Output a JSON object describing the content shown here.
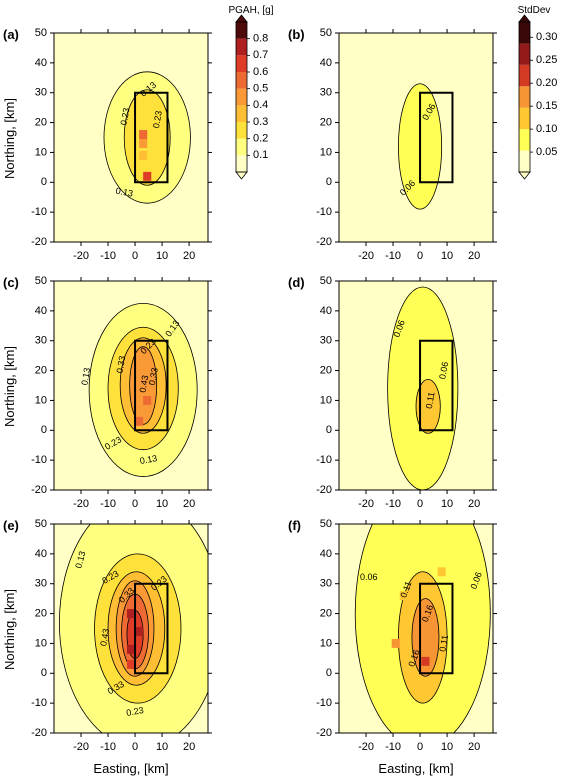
{
  "figure": {
    "axis_labels": {
      "x": "Easting, [km]",
      "y": "Northing, [km]"
    },
    "colorbars": [
      {
        "title": "PGAH, [g]",
        "ticks": [
          "0.1",
          "0.2",
          "0.3",
          "0.4",
          "0.5",
          "0.6",
          "0.7",
          "0.8"
        ],
        "levels": [
          0.05,
          0.13,
          0.23,
          0.33,
          0.43,
          0.53,
          0.63,
          0.73,
          0.85
        ],
        "colors": [
          "#FFFFC6",
          "#FFFF80",
          "#FFE13C",
          "#FFBE33",
          "#F99A37",
          "#EE6A33",
          "#DE3C26",
          "#AF1F1F",
          "#4D0A0A"
        ]
      },
      {
        "title": "StdDev",
        "ticks": [
          "0.05",
          "0.10",
          "0.15",
          "0.20",
          "0.25",
          "0.30"
        ],
        "levels": [
          0.03,
          0.06,
          0.11,
          0.16,
          0.21,
          0.26,
          0.31
        ],
        "colors": [
          "#FFFFC6",
          "#FFFF55",
          "#FFC832",
          "#F79535",
          "#D53A24",
          "#921A1A",
          "#3A0808"
        ]
      }
    ]
  },
  "chart_data": [
    {
      "panel": "(a)",
      "type": "heatmap",
      "quantity": "PGAH",
      "colorbar": 0,
      "xlim": [
        -30,
        27
      ],
      "ylim": [
        -20,
        50
      ],
      "xticks": [
        "-20",
        "-10",
        "0",
        "10",
        "20"
      ],
      "yticks": [
        "-20",
        "-10",
        "0",
        "10",
        "20",
        "30",
        "40",
        "50"
      ],
      "show_x_label": false,
      "show_y_label": true,
      "show_x_ticks": true,
      "rupture": [
        [
          0,
          0
        ],
        [
          12,
          0
        ],
        [
          12,
          30
        ],
        [
          0,
          30
        ]
      ],
      "background": 0.04,
      "contours": [
        {
          "level": 0.13,
          "cx": 4.5,
          "cy": 15,
          "rx": 16,
          "ry": 22
        },
        {
          "level": 0.23,
          "cx": 4.5,
          "cy": 15,
          "rx": 8.5,
          "ry": 16
        }
      ],
      "cells": [
        [
          3,
          13,
          0.45
        ],
        [
          3,
          16,
          0.55
        ],
        [
          3,
          9,
          0.35
        ],
        [
          4.5,
          2,
          0.65
        ]
      ],
      "contour_labels": [
        {
          "text": "0.13",
          "x": 5,
          "y": 31,
          "rot": -40
        },
        {
          "text": "0.23",
          "x": -3.5,
          "y": 22,
          "rot": -80
        },
        {
          "text": "0.23",
          "x": 8.5,
          "y": 21,
          "rot": -80
        },
        {
          "text": "0.13",
          "x": -4,
          "y": -3.5,
          "rot": 10
        }
      ]
    },
    {
      "panel": "(b)",
      "type": "heatmap",
      "quantity": "StdDev",
      "colorbar": 1,
      "xlim": [
        -30,
        27
      ],
      "ylim": [
        -20,
        50
      ],
      "xticks": [
        "-20",
        "-10",
        "0",
        "10",
        "20"
      ],
      "yticks": [
        "-20",
        "-10",
        "0",
        "10",
        "20",
        "30",
        "40",
        "50"
      ],
      "show_x_label": false,
      "show_y_label": false,
      "show_x_ticks": true,
      "rupture": [
        [
          0,
          0
        ],
        [
          12,
          0
        ],
        [
          12,
          30
        ],
        [
          0,
          30
        ]
      ],
      "background": 0.04,
      "contours": [
        {
          "level": 0.06,
          "cx": 0,
          "cy": 12,
          "rx": 8,
          "ry": 21
        }
      ],
      "cells": [],
      "contour_labels": [
        {
          "text": "0.06",
          "x": 3.5,
          "y": 23.5,
          "rot": -60
        },
        {
          "text": "0.06",
          "x": -4.5,
          "y": -2,
          "rot": -45
        }
      ]
    },
    {
      "panel": "(c)",
      "type": "heatmap",
      "quantity": "PGAH",
      "colorbar": 0,
      "xlim": [
        -30,
        27
      ],
      "ylim": [
        -20,
        50
      ],
      "xticks": [
        "-20",
        "-10",
        "0",
        "10",
        "20"
      ],
      "yticks": [
        "-20",
        "-10",
        "0",
        "10",
        "20",
        "30",
        "40",
        "50"
      ],
      "show_x_label": false,
      "show_y_label": true,
      "show_x_ticks": true,
      "rupture": [
        [
          0,
          0
        ],
        [
          12,
          0
        ],
        [
          12,
          30
        ],
        [
          0,
          30
        ]
      ],
      "background": 0.04,
      "contours": [
        {
          "level": 0.13,
          "cx": 3,
          "cy": 13.5,
          "rx": 20,
          "ry": 29
        },
        {
          "level": 0.23,
          "cx": 3,
          "cy": 14,
          "rx": 13,
          "ry": 20.5
        },
        {
          "level": 0.33,
          "cx": 3,
          "cy": 15,
          "rx": 8.5,
          "ry": 16
        },
        {
          "level": 0.43,
          "cx": 3,
          "cy": 15,
          "rx": 5,
          "ry": 13
        }
      ],
      "cells": [
        [
          1.5,
          3,
          0.6
        ],
        [
          4.5,
          10,
          0.55
        ],
        [
          3,
          22,
          0.5
        ]
      ],
      "contour_labels": [
        {
          "text": "0.13",
          "x": 14,
          "y": 34,
          "rot": -55
        },
        {
          "text": "0.13",
          "x": -18,
          "y": 18,
          "rot": -80
        },
        {
          "text": "0.33",
          "x": -5,
          "y": 22,
          "rot": -80
        },
        {
          "text": "0.23",
          "x": 5,
          "y": 28,
          "rot": -45
        },
        {
          "text": "0.43",
          "x": 3.5,
          "y": 15.5,
          "rot": -80
        },
        {
          "text": "0.33",
          "x": 7,
          "y": 18,
          "rot": -80
        },
        {
          "text": "0.23",
          "x": -8,
          "y": -4.5,
          "rot": -30
        },
        {
          "text": "0.13",
          "x": 5,
          "y": -10,
          "rot": -10
        }
      ]
    },
    {
      "panel": "(d)",
      "type": "heatmap",
      "quantity": "StdDev",
      "colorbar": 1,
      "xlim": [
        -30,
        27
      ],
      "ylim": [
        -20,
        50
      ],
      "xticks": [
        "-20",
        "-10",
        "0",
        "10",
        "20"
      ],
      "yticks": [
        "-20",
        "-10",
        "0",
        "10",
        "20",
        "30",
        "40",
        "50"
      ],
      "show_x_label": false,
      "show_y_label": false,
      "show_x_ticks": true,
      "rupture": [
        [
          0,
          0
        ],
        [
          12,
          0
        ],
        [
          12,
          30
        ],
        [
          0,
          30
        ]
      ],
      "background": 0.04,
      "contours": [
        {
          "level": 0.06,
          "cx": 1,
          "cy": 14,
          "rx": 13,
          "ry": 34
        },
        {
          "level": 0.11,
          "cx": 3,
          "cy": 8,
          "rx": 4.5,
          "ry": 9
        }
      ],
      "cells": [],
      "contour_labels": [
        {
          "text": "0.06",
          "x": -7.5,
          "y": 34,
          "rot": -70
        },
        {
          "text": "0.06",
          "x": 9,
          "y": 20,
          "rot": -80
        },
        {
          "text": "0.11",
          "x": 4,
          "y": 10,
          "rot": -80
        }
      ]
    },
    {
      "panel": "(e)",
      "type": "heatmap",
      "quantity": "PGAH",
      "colorbar": 0,
      "xlim": [
        -30,
        27
      ],
      "ylim": [
        -20,
        50
      ],
      "xticks": [
        "-20",
        "-10",
        "0",
        "10",
        "20"
      ],
      "yticks": [
        "-20",
        "-10",
        "0",
        "10",
        "20",
        "30",
        "40",
        "50"
      ],
      "show_x_label": true,
      "show_y_label": true,
      "show_x_ticks": true,
      "rupture": [
        [
          0,
          0
        ],
        [
          12,
          0
        ],
        [
          12,
          30
        ],
        [
          0,
          30
        ]
      ],
      "background": 0.04,
      "contours": [
        {
          "level": 0.13,
          "cx": 2,
          "cy": 17,
          "rx": 30,
          "ry": 42
        },
        {
          "level": 0.23,
          "cx": 1,
          "cy": 15,
          "rx": 16,
          "ry": 25
        },
        {
          "level": 0.33,
          "cx": 0.5,
          "cy": 15,
          "rx": 10.5,
          "ry": 19
        },
        {
          "level": 0.43,
          "cx": 0,
          "cy": 15,
          "rx": 7,
          "ry": 16
        },
        {
          "level": 0.53,
          "cx": 0,
          "cy": 14,
          "rx": 5,
          "ry": 12.5
        },
        {
          "level": 0.63,
          "cx": 0,
          "cy": 13,
          "rx": 3,
          "ry": 8
        }
      ],
      "cells": [
        [
          -1.5,
          20,
          0.8
        ],
        [
          -1.5,
          8,
          0.8
        ],
        [
          1.5,
          14,
          0.8
        ],
        [
          -1.5,
          3,
          0.7
        ]
      ],
      "contour_labels": [
        {
          "text": "0.13",
          "x": -20,
          "y": 38,
          "rot": -75
        },
        {
          "text": "0.23",
          "x": -9,
          "y": 32,
          "rot": -30
        },
        {
          "text": "0.23",
          "x": 9,
          "y": 30,
          "rot": -40
        },
        {
          "text": "0.33",
          "x": -3,
          "y": 26,
          "rot": -45
        },
        {
          "text": "0.43",
          "x": -11,
          "y": 12,
          "rot": -80
        },
        {
          "text": "0.33",
          "x": -7,
          "y": -5,
          "rot": -30
        },
        {
          "text": "0.23",
          "x": 0,
          "y": -13,
          "rot": -10
        }
      ]
    },
    {
      "panel": "(f)",
      "type": "heatmap",
      "quantity": "StdDev",
      "colorbar": 1,
      "xlim": [
        -30,
        27
      ],
      "ylim": [
        -20,
        50
      ],
      "xticks": [
        "-20",
        "-10",
        "0",
        "10",
        "20"
      ],
      "yticks": [
        "-20",
        "-10",
        "0",
        "10",
        "20",
        "30",
        "40",
        "50"
      ],
      "show_x_label": true,
      "show_y_label": false,
      "show_x_ticks": true,
      "rupture": [
        [
          0,
          0
        ],
        [
          12,
          0
        ],
        [
          12,
          30
        ],
        [
          0,
          30
        ]
      ],
      "background": 0.04,
      "contours": [
        {
          "level": 0.06,
          "cx": 1,
          "cy": 20,
          "rx": 25,
          "ry": 45
        },
        {
          "level": 0.11,
          "cx": 1,
          "cy": 12,
          "rx": 9,
          "ry": 22
        },
        {
          "level": 0.16,
          "cx": 2,
          "cy": 12,
          "rx": 5,
          "ry": 13
        }
      ],
      "cells": [
        [
          -9,
          10,
          0.18
        ],
        [
          -6,
          26,
          0.14
        ],
        [
          8,
          34,
          0.12
        ],
        [
          2,
          4,
          0.22
        ],
        [
          4,
          15,
          0.2
        ]
      ],
      "contour_labels": [
        {
          "text": "0.06",
          "x": -19,
          "y": 32,
          "rot": 0
        },
        {
          "text": "0.06",
          "x": 21,
          "y": 31,
          "rot": -70
        },
        {
          "text": "0.11",
          "x": -5,
          "y": 28,
          "rot": -70
        },
        {
          "text": "0.16",
          "x": 3,
          "y": 20,
          "rot": -70
        },
        {
          "text": "0.11",
          "x": 9,
          "y": 10,
          "rot": -80
        },
        {
          "text": "0.16",
          "x": -2,
          "y": 5,
          "rot": -70
        }
      ]
    }
  ]
}
